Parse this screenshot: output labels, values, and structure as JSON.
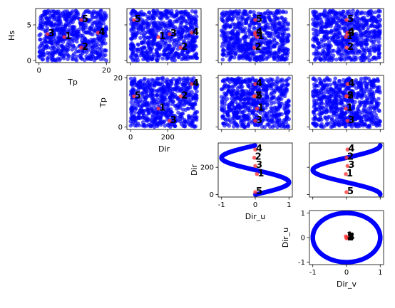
{
  "figure": {
    "point_color": "#0000ff",
    "highlight_color": "#ff3b3b",
    "highlight_label_color": "#000000"
  },
  "chart_data": [
    {
      "type": "scatter",
      "row": 0,
      "col": 0,
      "xlabel": "Tp",
      "ylabel": "Hs",
      "xlim": [
        -1,
        21
      ],
      "ylim": [
        -0.3,
        7.3
      ],
      "xticks": [
        0,
        20
      ],
      "yticks": [
        0,
        5
      ],
      "show_xticklabels": true,
      "show_yticklabels": true,
      "background": {
        "x_range": [
          0,
          20
        ],
        "y_range": [
          0,
          7
        ]
      },
      "highlights": [
        {
          "label": "1",
          "x": 7.5,
          "y": 3.3
        },
        {
          "label": "2",
          "x": 12.5,
          "y": 1.8
        },
        {
          "label": "3",
          "x": 2.5,
          "y": 3.7
        },
        {
          "label": "4",
          "x": 17.5,
          "y": 3.9
        },
        {
          "label": "5",
          "x": 12.5,
          "y": 5.7
        }
      ]
    },
    {
      "type": "scatter",
      "row": 0,
      "col": 1,
      "xlabel": "",
      "ylabel": "",
      "xlim": [
        -20,
        380
      ],
      "ylim": [
        -0.3,
        7.3
      ],
      "xticks": [
        0,
        200
      ],
      "yticks": [
        0,
        5
      ],
      "show_xticklabels": false,
      "show_yticklabels": false,
      "background": {
        "x_range": [
          0,
          360
        ],
        "y_range": [
          0,
          7
        ]
      },
      "highlights": [
        {
          "label": "1",
          "x": 150,
          "y": 3.3
        },
        {
          "label": "2",
          "x": 270,
          "y": 1.8
        },
        {
          "label": "3",
          "x": 210,
          "y": 3.7
        },
        {
          "label": "4",
          "x": 330,
          "y": 3.9
        },
        {
          "label": "5",
          "x": 18,
          "y": 5.7
        }
      ]
    },
    {
      "type": "scatter",
      "row": 0,
      "col": 2,
      "xlabel": "",
      "ylabel": "",
      "xlim": [
        -1.1,
        1.1
      ],
      "ylim": [
        -0.3,
        7.3
      ],
      "xticks": [
        -1,
        0,
        1
      ],
      "yticks": [
        0,
        5
      ],
      "show_xticklabels": false,
      "show_yticklabels": false,
      "background": {
        "x_range": [
          -1,
          1
        ],
        "y_range": [
          0,
          7
        ]
      },
      "highlights": [
        {
          "label": "1",
          "x": 0.05,
          "y": 3.3
        },
        {
          "label": "2",
          "x": -0.03,
          "y": 1.8
        },
        {
          "label": "3",
          "x": 0.0,
          "y": 3.7
        },
        {
          "label": "4",
          "x": 0.0,
          "y": 3.9
        },
        {
          "label": "5",
          "x": 0.0,
          "y": 5.7
        }
      ]
    },
    {
      "type": "scatter",
      "row": 0,
      "col": 3,
      "xlabel": "",
      "ylabel": "",
      "xlim": [
        -1.1,
        1.1
      ],
      "ylim": [
        -0.3,
        7.3
      ],
      "xticks": [
        -1,
        0,
        1
      ],
      "yticks": [
        0,
        5
      ],
      "show_xticklabels": false,
      "show_yticklabels": false,
      "background": {
        "x_range": [
          -1,
          1
        ],
        "y_range": [
          0,
          7
        ]
      },
      "highlights": [
        {
          "label": "1",
          "x": -0.02,
          "y": 3.3
        },
        {
          "label": "2",
          "x": 0.0,
          "y": 1.8
        },
        {
          "label": "3",
          "x": 0.03,
          "y": 3.7
        },
        {
          "label": "4",
          "x": 0.03,
          "y": 3.9
        },
        {
          "label": "5",
          "x": 0.0,
          "y": 5.7
        }
      ]
    },
    {
      "type": "scatter",
      "row": 1,
      "col": 1,
      "xlabel": "Dir",
      "ylabel": "Tp",
      "xlim": [
        -20,
        380
      ],
      "ylim": [
        -1,
        21
      ],
      "xticks": [
        0,
        200
      ],
      "yticks": [
        0,
        20
      ],
      "show_xticklabels": true,
      "show_yticklabels": true,
      "background": {
        "x_range": [
          0,
          360
        ],
        "y_range": [
          0,
          20
        ]
      },
      "highlights": [
        {
          "label": "1",
          "x": 150,
          "y": 7.5
        },
        {
          "label": "2",
          "x": 270,
          "y": 12.5
        },
        {
          "label": "3",
          "x": 210,
          "y": 2.5
        },
        {
          "label": "4",
          "x": 330,
          "y": 17.5
        },
        {
          "label": "5",
          "x": 18,
          "y": 12.5
        }
      ]
    },
    {
      "type": "scatter",
      "row": 1,
      "col": 2,
      "xlabel": "",
      "ylabel": "",
      "xlim": [
        -1.1,
        1.1
      ],
      "ylim": [
        -1,
        21
      ],
      "xticks": [
        -1,
        0,
        1
      ],
      "yticks": [
        0,
        20
      ],
      "show_xticklabels": false,
      "show_yticklabels": false,
      "background": {
        "x_range": [
          -1,
          1
        ],
        "y_range": [
          0,
          20
        ]
      },
      "highlights": [
        {
          "label": "1",
          "x": 0.05,
          "y": 7.5
        },
        {
          "label": "2",
          "x": -0.03,
          "y": 12.5
        },
        {
          "label": "3",
          "x": 0.0,
          "y": 2.5
        },
        {
          "label": "4",
          "x": 0.0,
          "y": 17.5
        },
        {
          "label": "5",
          "x": 0.0,
          "y": 12.5
        }
      ]
    },
    {
      "type": "scatter",
      "row": 1,
      "col": 3,
      "xlabel": "",
      "ylabel": "",
      "xlim": [
        -1.1,
        1.1
      ],
      "ylim": [
        -1,
        21
      ],
      "xticks": [
        -1,
        0,
        1
      ],
      "yticks": [
        0,
        20
      ],
      "show_xticklabels": false,
      "show_yticklabels": false,
      "background": {
        "x_range": [
          -1,
          1
        ],
        "y_range": [
          0,
          20
        ]
      },
      "highlights": [
        {
          "label": "1",
          "x": -0.02,
          "y": 7.5
        },
        {
          "label": "2",
          "x": 0.0,
          "y": 12.5
        },
        {
          "label": "3",
          "x": 0.03,
          "y": 2.5
        },
        {
          "label": "4",
          "x": 0.03,
          "y": 17.5
        },
        {
          "label": "5",
          "x": 0.0,
          "y": 12.5
        }
      ]
    },
    {
      "type": "scatter",
      "row": 2,
      "col": 2,
      "xlabel": "Dir_u",
      "ylabel": "Dir",
      "xlim": [
        -1.1,
        1.1
      ],
      "ylim": [
        -18,
        378
      ],
      "xticks": [
        -1,
        0,
        1
      ],
      "yticks": [
        0,
        200
      ],
      "show_xticklabels": true,
      "show_yticklabels": true,
      "background": {
        "curve": "dir_u_vs_dir"
      },
      "highlights": [
        {
          "label": "1",
          "x": 0.05,
          "y": 150
        },
        {
          "label": "2",
          "x": -0.03,
          "y": 270
        },
        {
          "label": "3",
          "x": 0.0,
          "y": 210
        },
        {
          "label": "4",
          "x": 0.0,
          "y": 330
        },
        {
          "label": "5",
          "x": 0.0,
          "y": 18
        }
      ]
    },
    {
      "type": "scatter",
      "row": 2,
      "col": 3,
      "xlabel": "",
      "ylabel": "",
      "xlim": [
        -1.1,
        1.1
      ],
      "ylim": [
        -18,
        378
      ],
      "xticks": [
        -1,
        0,
        1
      ],
      "yticks": [
        0,
        200
      ],
      "show_xticklabels": false,
      "show_yticklabels": false,
      "background": {
        "curve": "dir_v_vs_dir"
      },
      "highlights": [
        {
          "label": "1",
          "x": -0.02,
          "y": 150
        },
        {
          "label": "2",
          "x": 0.0,
          "y": 270
        },
        {
          "label": "3",
          "x": 0.03,
          "y": 210
        },
        {
          "label": "4",
          "x": 0.03,
          "y": 330
        },
        {
          "label": "5",
          "x": 0.0,
          "y": 18
        }
      ]
    },
    {
      "type": "scatter",
      "row": 3,
      "col": 3,
      "xlabel": "Dir_v",
      "ylabel": "Dir_u",
      "xlim": [
        -1.1,
        1.1
      ],
      "ylim": [
        -1.1,
        1.1
      ],
      "xticks": [
        -1,
        0,
        1
      ],
      "yticks": [
        -1,
        0,
        1
      ],
      "show_xticklabels": true,
      "show_yticklabels": true,
      "background": {
        "curve": "unit_circle"
      },
      "highlights": [
        {
          "label": "1",
          "x": -0.02,
          "y": 0.05
        },
        {
          "label": "2",
          "x": 0.0,
          "y": -0.03
        },
        {
          "label": "3",
          "x": 0.03,
          "y": 0.0
        },
        {
          "label": "4",
          "x": 0.03,
          "y": 0.0
        },
        {
          "label": "5",
          "x": 0.0,
          "y": 0.0
        }
      ]
    }
  ]
}
